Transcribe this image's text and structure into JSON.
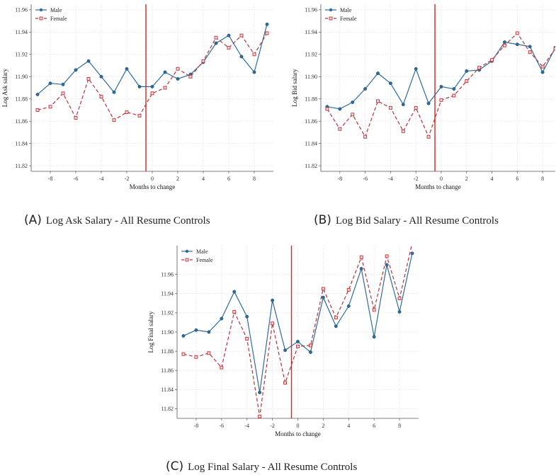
{
  "colors": {
    "male": "#2f6b9a",
    "female": "#b8333b",
    "cutoff": "#e02020",
    "grid": "#d9d9d9",
    "axis": "#555555"
  },
  "chart_data": [
    {
      "id": "A",
      "type": "line",
      "caption_letter": "(A)",
      "caption_text": "Log Ask Salary - All Resume Controls",
      "xlabel": "Months to change",
      "ylabel": "Log Ask salary",
      "xlim": [
        -9.5,
        9.5
      ],
      "ylim": [
        11.815,
        11.965
      ],
      "xticks": [
        -8,
        -6,
        -4,
        -2,
        0,
        2,
        4,
        6,
        8
      ],
      "yticks": [
        11.82,
        11.84,
        11.86,
        11.88,
        11.9,
        11.92,
        11.94,
        11.96
      ],
      "ytick_labels": [
        "11.82",
        "11.84",
        "11.86",
        "11.88",
        "11.90",
        "11.92",
        "11.94",
        "11.96"
      ],
      "cutoff_x": -0.5,
      "legend": [
        "Male",
        "Female"
      ],
      "x": [
        -9,
        -8,
        -7,
        -6,
        -5,
        -4,
        -3,
        -2,
        -1,
        0,
        1,
        2,
        3,
        4,
        5,
        6,
        7,
        8,
        9
      ],
      "series": [
        {
          "name": "Male",
          "values": [
            11.884,
            11.894,
            11.893,
            11.906,
            11.914,
            11.9,
            11.886,
            11.907,
            11.891,
            11.891,
            11.904,
            11.898,
            11.902,
            11.913,
            11.93,
            11.937,
            11.918,
            11.904,
            11.947
          ]
        },
        {
          "name": "Female",
          "values": [
            11.87,
            11.873,
            11.885,
            11.863,
            11.898,
            11.882,
            11.861,
            11.868,
            11.865,
            11.885,
            11.89,
            11.907,
            11.9,
            11.914,
            11.935,
            11.926,
            11.937,
            11.92,
            11.939
          ]
        }
      ]
    },
    {
      "id": "B",
      "type": "line",
      "caption_letter": "(B)",
      "caption_text": "Log Bid Salary - All Resume Controls",
      "xlabel": "Months to change",
      "ylabel": "Log Bid salary",
      "xlim": [
        -9.5,
        9.0
      ],
      "ylim": [
        11.815,
        11.965
      ],
      "xticks": [
        -8,
        -6,
        -4,
        -2,
        0,
        2,
        4,
        6,
        8
      ],
      "yticks": [
        11.82,
        11.84,
        11.86,
        11.88,
        11.9,
        11.92,
        11.94,
        11.96
      ],
      "ytick_labels": [
        "11.82",
        "11.84",
        "11.86",
        "11.88",
        "11.90",
        "11.92",
        "11.94",
        "11.96"
      ],
      "cutoff_x": -0.5,
      "legend": [
        "Male",
        "Female"
      ],
      "x": [
        -9,
        -8,
        -7,
        -6,
        -5,
        -4,
        -3,
        -2,
        -1,
        0,
        1,
        2,
        3,
        4,
        5,
        6,
        7,
        8,
        9
      ],
      "series": [
        {
          "name": "Male",
          "values": [
            11.873,
            11.871,
            11.877,
            11.889,
            11.903,
            11.894,
            11.875,
            11.907,
            11.876,
            11.891,
            11.889,
            11.905,
            11.906,
            11.914,
            11.931,
            11.929,
            11.927,
            11.904,
            11.926
          ]
        },
        {
          "name": "Female",
          "values": [
            11.871,
            11.853,
            11.866,
            11.846,
            11.878,
            11.872,
            11.851,
            11.872,
            11.846,
            11.879,
            11.883,
            11.896,
            11.908,
            11.915,
            11.928,
            11.939,
            11.922,
            11.909,
            11.925
          ]
        }
      ]
    },
    {
      "id": "C",
      "type": "line",
      "caption_letter": "(C)",
      "caption_text": "Log Final Salary - All Resume Controls",
      "xlabel": "Months to change",
      "ylabel": "Log Final salary",
      "xlim": [
        -9.5,
        9.5
      ],
      "ylim": [
        11.81,
        11.99
      ],
      "xticks": [
        -8,
        -6,
        -4,
        -2,
        0,
        2,
        4,
        6,
        8
      ],
      "yticks": [
        11.82,
        11.84,
        11.86,
        11.88,
        11.9,
        11.92,
        11.94,
        11.96
      ],
      "ytick_labels": [
        "11.82",
        "11.84",
        "11.86",
        "11.88",
        "11.90",
        "11.92",
        "11.94",
        "11.96"
      ],
      "cutoff_x": -0.5,
      "legend": [
        "Male",
        "Female"
      ],
      "x": [
        -9,
        -8,
        -7,
        -6,
        -5,
        -4,
        -3,
        -2,
        -1,
        0,
        1,
        2,
        3,
        4,
        5,
        6,
        7,
        8,
        9
      ],
      "series": [
        {
          "name": "Male",
          "values": [
            11.896,
            11.902,
            11.9,
            11.914,
            11.942,
            11.916,
            11.837,
            11.933,
            11.881,
            11.89,
            11.879,
            11.936,
            11.906,
            11.927,
            11.966,
            11.895,
            11.97,
            11.921,
            11.982
          ]
        },
        {
          "name": "Female",
          "values": [
            11.877,
            11.874,
            11.878,
            11.863,
            11.921,
            11.893,
            11.812,
            11.909,
            11.847,
            11.885,
            11.886,
            11.945,
            11.915,
            11.944,
            11.978,
            11.923,
            11.979,
            11.935,
            11.993
          ]
        }
      ]
    }
  ]
}
